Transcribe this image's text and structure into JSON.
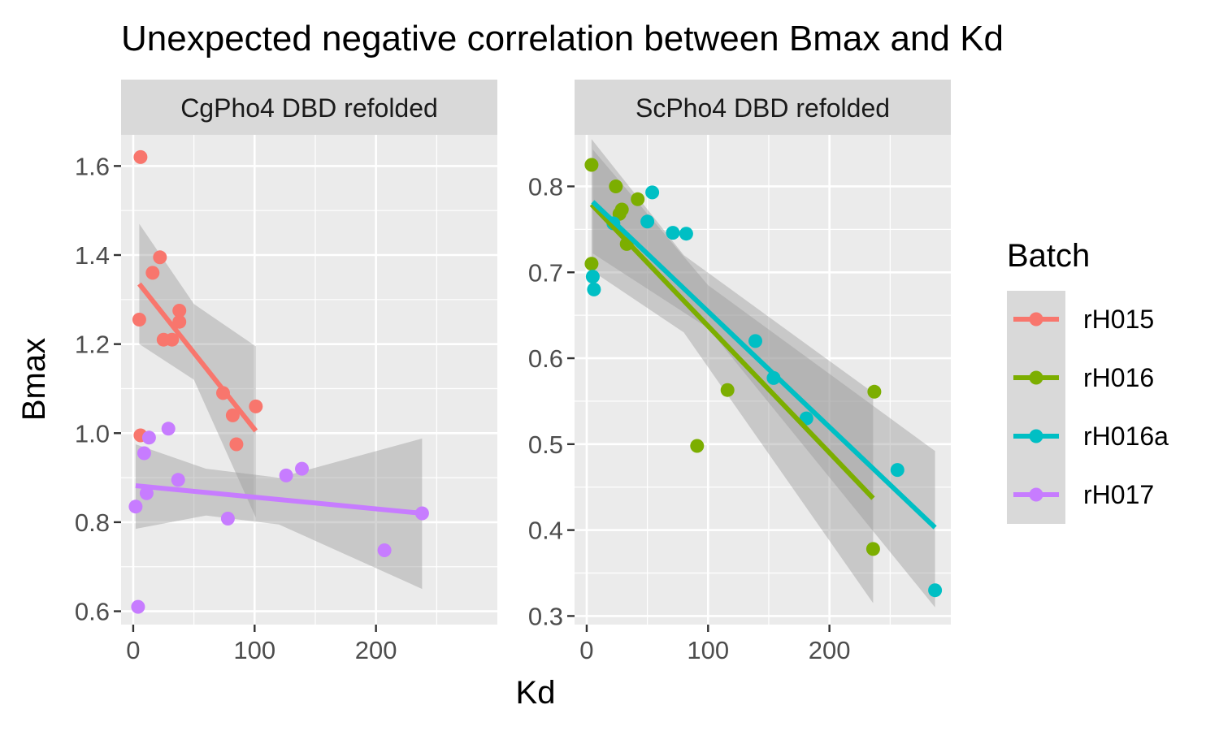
{
  "chart_data": {
    "type": "scatter",
    "title": "Unexpected negative correlation between Bmax and Kd",
    "xlabel": "Kd",
    "ylabel": "Bmax",
    "grid": true,
    "legend": {
      "title": "Batch",
      "position": "right",
      "entries": [
        {
          "name": "rH015",
          "color": "#F8766D"
        },
        {
          "name": "rH016",
          "color": "#7CAE00"
        },
        {
          "name": "rH016a",
          "color": "#00BFC4"
        },
        {
          "name": "rH017",
          "color": "#C77CFF"
        }
      ]
    },
    "panels": [
      {
        "facet_label": "CgPho4 DBD refolded",
        "xlim": [
          -10,
          300
        ],
        "ylim": [
          0.57,
          1.67
        ],
        "x_ticks": [
          0,
          100,
          200
        ],
        "x_tick_labels": [
          "0",
          "100",
          "200"
        ],
        "x_minor_ticks": [
          50,
          150,
          250
        ],
        "y_ticks": [
          0.6,
          0.8,
          1.0,
          1.2,
          1.4,
          1.6
        ],
        "y_tick_labels": [
          "0.6",
          "0.8",
          "1.0",
          "1.2",
          "1.4",
          "1.6"
        ],
        "y_minor_ticks": [
          0.7,
          0.9,
          1.1,
          1.3,
          1.5
        ],
        "series": [
          {
            "name": "rH015",
            "points": [
              [
                6,
                1.62
              ],
              [
                5,
                1.255
              ],
              [
                16,
                1.36
              ],
              [
                22,
                1.395
              ],
              [
                25,
                1.21
              ],
              [
                32,
                1.21
              ],
              [
                38,
                1.275
              ],
              [
                38,
                1.25
              ],
              [
                6,
                0.995
              ],
              [
                74,
                1.09
              ],
              [
                82,
                1.04
              ],
              [
                85,
                0.975
              ],
              [
                101,
                1.06
              ]
            ],
            "fit": {
              "x": [
                5,
                101
              ],
              "y": [
                1.335,
                1.005
              ]
            },
            "ci": {
              "x": [
                5,
                50,
                101
              ],
              "lower": [
                1.2,
                1.12,
                0.81
              ],
              "upper": [
                1.47,
                1.29,
                1.195
              ]
            }
          },
          {
            "name": "rH017",
            "points": [
              [
                2,
                0.835
              ],
              [
                4,
                0.61
              ],
              [
                9,
                0.955
              ],
              [
                11,
                0.865
              ],
              [
                13,
                0.99
              ],
              [
                29,
                1.01
              ],
              [
                37,
                0.895
              ],
              [
                78,
                0.808
              ],
              [
                126,
                0.905
              ],
              [
                139,
                0.92
              ],
              [
                207,
                0.737
              ],
              [
                238,
                0.82
              ]
            ],
            "fit": {
              "x": [
                2,
                238
              ],
              "y": [
                0.882,
                0.82
              ]
            },
            "ci": {
              "x": [
                2,
                60,
                120,
                238
              ],
              "lower": [
                0.785,
                0.815,
                0.795,
                0.65
              ],
              "upper": [
                0.975,
                0.92,
                0.9,
                0.988
              ]
            }
          }
        ]
      },
      {
        "facet_label": "ScPho4 DBD refolded",
        "xlim": [
          -10,
          300
        ],
        "ylim": [
          0.29,
          0.86
        ],
        "x_ticks": [
          0,
          100,
          200
        ],
        "x_tick_labels": [
          "0",
          "100",
          "200"
        ],
        "x_minor_ticks": [
          50,
          150,
          250
        ],
        "y_ticks": [
          0.3,
          0.4,
          0.5,
          0.6,
          0.7,
          0.8
        ],
        "y_tick_labels": [
          "0.3",
          "0.4",
          "0.5",
          "0.6",
          "0.7",
          "0.8"
        ],
        "y_minor_ticks": [
          0.35,
          0.45,
          0.55,
          0.65,
          0.75
        ],
        "series": [
          {
            "name": "rH016",
            "points": [
              [
                4,
                0.825
              ],
              [
                4,
                0.71
              ],
              [
                24,
                0.8
              ],
              [
                27,
                0.768
              ],
              [
                29,
                0.773
              ],
              [
                33,
                0.733
              ],
              [
                42,
                0.785
              ],
              [
                91,
                0.498
              ],
              [
                116,
                0.563
              ],
              [
                237,
                0.561
              ],
              [
                236,
                0.378
              ]
            ],
            "fit": {
              "x": [
                4,
                236
              ],
              "y": [
                0.779,
                0.437
              ]
            },
            "ci": {
              "x": [
                4,
                80,
                236
              ],
              "lower": [
                0.702,
                0.63,
                0.315
              ],
              "upper": [
                0.855,
                0.72,
                0.56
              ]
            }
          },
          {
            "name": "rH016a",
            "points": [
              [
                5,
                0.695
              ],
              [
                6,
                0.68
              ],
              [
                22,
                0.757
              ],
              [
                50,
                0.759
              ],
              [
                54,
                0.793
              ],
              [
                71,
                0.746
              ],
              [
                82,
                0.745
              ],
              [
                139,
                0.62
              ],
              [
                154,
                0.577
              ],
              [
                181,
                0.53
              ],
              [
                256,
                0.47
              ],
              [
                287,
                0.33
              ]
            ],
            "fit": {
              "x": [
                5,
                287
              ],
              "y": [
                0.782,
                0.403
              ]
            },
            "ci": {
              "x": [
                5,
                100,
                287
              ],
              "lower": [
                0.722,
                0.635,
                0.31
              ],
              "upper": [
                0.843,
                0.685,
                0.492
              ]
            }
          }
        ]
      }
    ]
  }
}
